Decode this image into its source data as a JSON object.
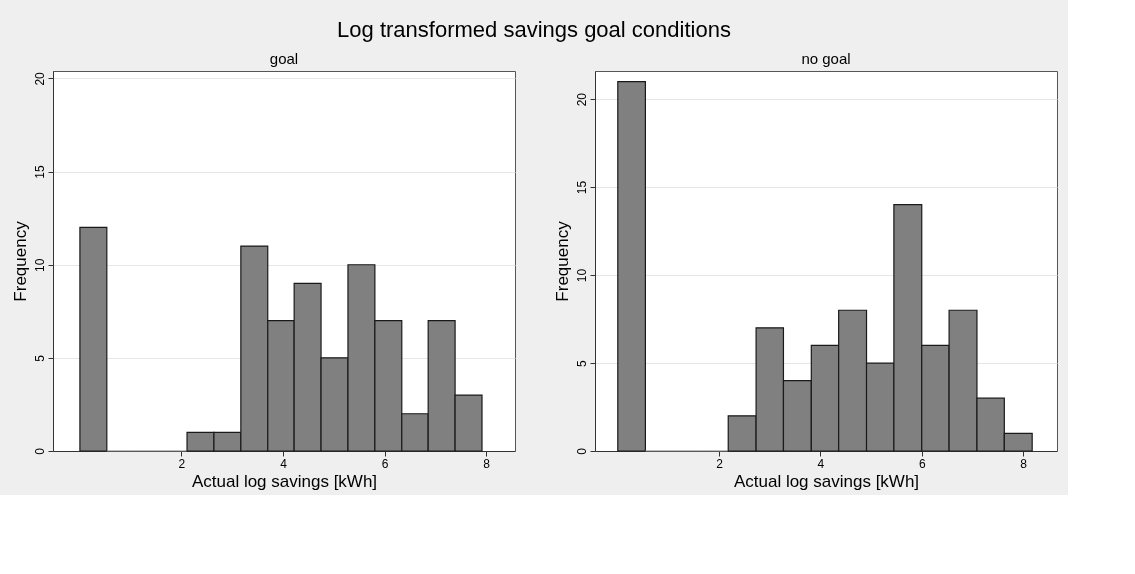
{
  "chart_data": [
    {
      "type": "histogram",
      "title": "Log transformed savings goal conditions",
      "subtitle": "goal",
      "xlabel": "Actual log savings [kWh]",
      "ylabel": "Frequency",
      "color": "#808080",
      "bins": [
        0,
        0.53,
        1.06,
        1.58,
        2.11,
        2.64,
        3.17,
        3.7,
        4.22,
        4.75,
        5.28,
        5.81,
        6.34,
        6.86,
        7.39,
        7.92
      ],
      "values": [
        12,
        0,
        0,
        0,
        1,
        1,
        11,
        7,
        9,
        5,
        10,
        7,
        2,
        7,
        3
      ],
      "xlim": [
        -0.53,
        8.57
      ],
      "ylim": [
        0,
        20.4
      ],
      "xticks": [
        2,
        4,
        6,
        8
      ],
      "yticks": [
        0,
        5,
        10,
        15,
        20
      ],
      "grid": "y"
    },
    {
      "type": "histogram",
      "subtitle": "no goal",
      "xlabel": "Actual log savings [kWh]",
      "ylabel": "Frequency",
      "color": "#808080",
      "bins": [
        0,
        0.545,
        1.09,
        1.64,
        2.18,
        2.73,
        3.27,
        3.82,
        4.36,
        4.91,
        5.45,
        6.0,
        6.54,
        7.09,
        7.63,
        8.18
      ],
      "values": [
        21,
        0,
        0,
        0,
        2,
        7,
        4,
        6,
        8,
        5,
        14,
        6,
        8,
        3,
        1
      ],
      "xlim": [
        -0.45,
        8.67
      ],
      "ylim": [
        0,
        21.6
      ],
      "xticks": [
        2,
        4,
        6,
        8
      ],
      "yticks": [
        0,
        5,
        10,
        15,
        20
      ],
      "grid": "y"
    }
  ]
}
